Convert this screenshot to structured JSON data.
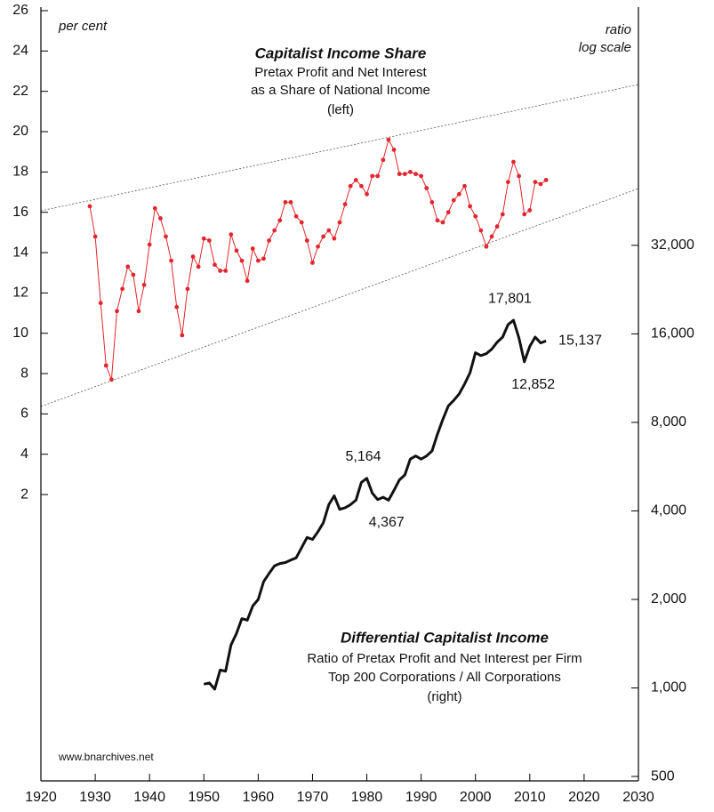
{
  "chart_data": {
    "type": "line",
    "left_axis_label": "per cent",
    "right_axis_label": [
      "ratio",
      "log scale"
    ],
    "source": "www.bnarchives.net",
    "xlim": [
      1920,
      2030
    ],
    "xticks": [
      1920,
      1930,
      1940,
      1950,
      1960,
      1970,
      1980,
      1990,
      2000,
      2010,
      2020,
      2030
    ],
    "ylim": [
      -12.2,
      26
    ],
    "yticks": [
      2,
      4,
      6,
      8,
      10,
      12,
      14,
      16,
      18,
      20,
      22,
      24,
      26
    ],
    "y2lim": [
      483,
      201000
    ],
    "y2log": true,
    "y2ticks": [
      500,
      {
        "value": 1000,
        "label": "1,000"
      },
      {
        "value": 2000,
        "label": "2,000"
      },
      {
        "value": 4000,
        "label": "4,000"
      },
      {
        "value": 8000,
        "label": "8,000"
      },
      {
        "value": 16000,
        "label": "16,000"
      },
      {
        "value": 32000,
        "label": "32,000"
      }
    ],
    "series": [
      {
        "name": "Capitalist Income Share",
        "description": [
          "Pretax Profit and Net Interest",
          "as a Share of National Income",
          "(left)"
        ],
        "color": "#e3262d",
        "markers": true,
        "x": [
          1929,
          1930,
          1931,
          1932,
          1933,
          1934,
          1935,
          1936,
          1937,
          1938,
          1939,
          1940,
          1941,
          1942,
          1943,
          1944,
          1945,
          1946,
          1947,
          1948,
          1949,
          1950,
          1951,
          1952,
          1953,
          1954,
          1955,
          1956,
          1957,
          1958,
          1959,
          1960,
          1961,
          1962,
          1963,
          1964,
          1965,
          1966,
          1967,
          1968,
          1969,
          1970,
          1971,
          1972,
          1973,
          1974,
          1975,
          1976,
          1977,
          1978,
          1979,
          1980,
          1981,
          1982,
          1983,
          1984,
          1985,
          1986,
          1987,
          1988,
          1989,
          1990,
          1991,
          1992,
          1993,
          1994,
          1995,
          1996,
          1997,
          1998,
          1999,
          2000,
          2001,
          2002,
          2003,
          2004,
          2005,
          2006,
          2007,
          2008,
          2009,
          2010,
          2011,
          2012,
          2013
        ],
        "values": [
          16.3,
          14.8,
          11.5,
          8.4,
          7.7,
          11.1,
          12.2,
          13.3,
          12.9,
          11.1,
          12.4,
          14.4,
          16.2,
          15.7,
          14.8,
          13.6,
          11.3,
          9.9,
          12.2,
          13.8,
          13.3,
          14.7,
          14.6,
          13.4,
          13.1,
          13.1,
          14.9,
          14.1,
          13.6,
          12.6,
          14.2,
          13.6,
          13.7,
          14.6,
          15.1,
          15.6,
          16.5,
          16.5,
          15.8,
          15.5,
          14.6,
          13.5,
          14.3,
          14.8,
          15.1,
          14.7,
          15.5,
          16.4,
          17.3,
          17.6,
          17.3,
          16.9,
          17.8,
          17.8,
          18.6,
          19.6,
          19.1,
          17.9,
          17.9,
          18.0,
          17.9,
          17.8,
          17.2,
          16.5,
          15.6,
          15.5,
          16.0,
          16.6,
          16.9,
          17.3,
          16.3,
          15.8,
          15.1,
          14.3,
          14.8,
          15.3,
          15.9,
          17.5,
          18.5,
          17.8,
          15.9,
          16.1,
          17.5,
          17.4,
          17.6
        ]
      },
      {
        "name": "Differential Capitalist Income",
        "description": [
          "Ratio of Pretax Profit and Net Interest per Firm",
          "Top 200 Corporations / All Corporations",
          "(right)"
        ],
        "color": "#111111",
        "axis": "y2",
        "markers": false,
        "x": [
          1950,
          1951,
          1952,
          1953,
          1954,
          1955,
          1956,
          1957,
          1958,
          1959,
          1960,
          1961,
          1962,
          1963,
          1964,
          1965,
          1966,
          1967,
          1968,
          1969,
          1970,
          1971,
          1972,
          1973,
          1974,
          1975,
          1976,
          1977,
          1978,
          1979,
          1980,
          1981,
          1982,
          1983,
          1984,
          1985,
          1986,
          1987,
          1988,
          1989,
          1990,
          1991,
          1992,
          1993,
          1994,
          1995,
          1996,
          1997,
          1998,
          1999,
          2000,
          2001,
          2002,
          2003,
          2004,
          2005,
          2006,
          2007,
          2008,
          2009,
          2010,
          2011,
          2012,
          2013
        ],
        "values": [
          1030,
          1040,
          990,
          1150,
          1140,
          1400,
          1530,
          1720,
          1700,
          1900,
          2000,
          2300,
          2450,
          2600,
          2650,
          2670,
          2720,
          2770,
          3000,
          3250,
          3200,
          3400,
          3650,
          4200,
          4500,
          4050,
          4100,
          4200,
          4350,
          5000,
          5164,
          4600,
          4367,
          4450,
          4350,
          4700,
          5100,
          5300,
          6000,
          6150,
          6000,
          6150,
          6400,
          7300,
          8200,
          9100,
          9500,
          10000,
          10800,
          11800,
          13800,
          13500,
          13700,
          14200,
          15000,
          15600,
          17200,
          17801,
          15500,
          12852,
          14500,
          15600,
          14900,
          15137
        ],
        "value_labels": [
          null,
          null,
          null,
          null,
          null,
          null,
          null,
          null,
          null,
          null,
          null,
          null,
          null,
          null,
          null,
          null,
          null,
          null,
          null,
          null,
          null,
          null,
          null,
          null,
          null,
          null,
          null,
          null,
          null,
          null,
          "5,164",
          null,
          "4,367",
          null,
          null,
          null,
          null,
          null,
          null,
          null,
          null,
          null,
          null,
          null,
          null,
          null,
          null,
          null,
          null,
          null,
          null,
          null,
          null,
          null,
          null,
          null,
          null,
          "17,801",
          null,
          "12,852",
          null,
          null,
          null,
          "15,137"
        ]
      }
    ]
  }
}
